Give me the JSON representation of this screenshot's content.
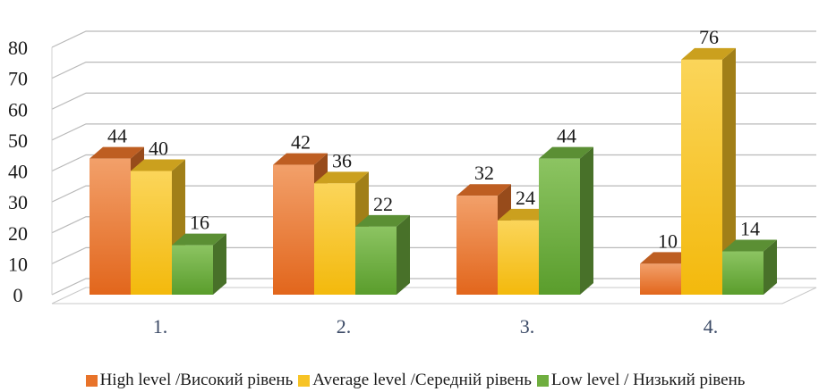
{
  "chart_data": {
    "type": "bar",
    "categories": [
      "1.",
      "2.",
      "3.",
      "4."
    ],
    "series": [
      {
        "name": "High level /Високий рівень",
        "values": [
          44,
          42,
          32,
          10
        ],
        "color": "#e8732a"
      },
      {
        "name": "Average level /Середній рівень",
        "values": [
          40,
          36,
          24,
          76
        ],
        "color": "#f7c325"
      },
      {
        "name": "Low level / Низький рівень",
        "values": [
          16,
          22,
          44,
          14
        ],
        "color": "#6fae3f"
      }
    ],
    "yticks": [
      0,
      10,
      20,
      30,
      40,
      50,
      60,
      70,
      80
    ],
    "ylim": [
      0,
      80
    ],
    "grid": true,
    "legend_position": "bottom",
    "style": "3d-column"
  }
}
